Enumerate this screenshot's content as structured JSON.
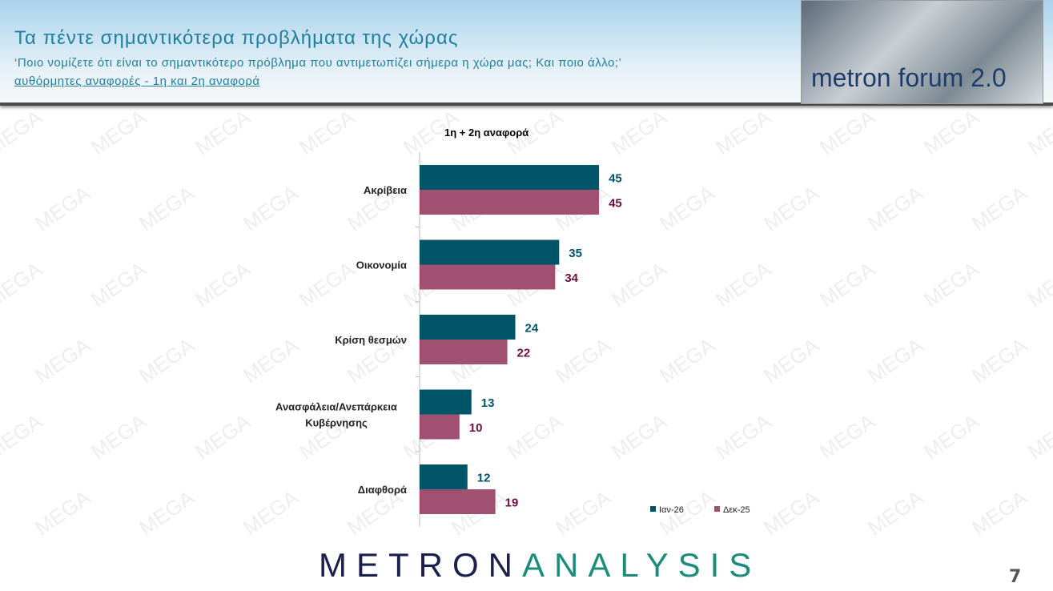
{
  "header": {
    "title": "Τα πέντε σημαντικότερα προβλήματα της χώρας",
    "question": "‘Ποιο νομίζετε ότι είναι το σημαντικότερο πρόβλημα που αντιμετωπίζει σήμερα η χώρα μας; Και ποιο άλλο;’",
    "subtitle": "αυθόρμητες αναφορές - 1η και 2η αναφορά",
    "logo_text": "metron forum 2.0"
  },
  "watermark": "MEGA",
  "footer": {
    "brand_a": "METRON",
    "brand_b": "ANALYSIS",
    "page": "7"
  },
  "chart_data": {
    "type": "bar",
    "orientation": "horizontal",
    "title": "1η + 2η αναφορά",
    "categories": [
      "Ακρίβεια",
      "Οικονομία",
      "Κρίση θεσμών",
      "Ανασφάλεια/Ανεπάρκεια Κυβέρνησης",
      "Διαφθορά"
    ],
    "series": [
      {
        "name": "Ιαν-26",
        "color": "#005468",
        "values": [
          45,
          35,
          24,
          13,
          12
        ]
      },
      {
        "name": "Δεκ-25",
        "color": "#a05070",
        "values": [
          45,
          34,
          22,
          10,
          19
        ]
      }
    ],
    "label_colors": [
      "#005468",
      "#6b1040"
    ],
    "xlim": [
      0,
      100
    ],
    "grid": false,
    "legend": "bottom-right"
  }
}
